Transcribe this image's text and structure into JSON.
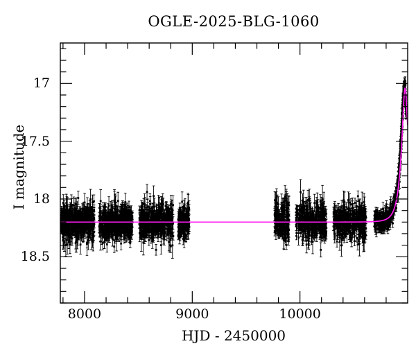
{
  "figure": {
    "title": "OGLE-2025-BLG-1060",
    "xlabel": "HJD - 2450000",
    "ylabel": "I magnitude"
  },
  "chart_data": {
    "type": "scatter",
    "title": "OGLE-2025-BLG-1060",
    "xlabel": "HJD - 2450000",
    "ylabel": "I magnitude",
    "x_range": [
      7775,
      11000
    ],
    "y_top_mag": 16.65,
    "y_bottom_mag": 18.9,
    "y_axis_inverted": true,
    "grid": false,
    "legend": false,
    "x_major_ticks": [
      8000,
      9000,
      10000
    ],
    "x_minor_step": 200,
    "y_major_ticks": [
      17,
      17.5,
      18,
      18.5
    ],
    "y_minor_step": 0.1,
    "point_color": "#000000",
    "model_color": "#ff1cef",
    "baseline_mag": 18.2,
    "model": {
      "type": "paczynski-microlensing",
      "t0": 10976,
      "tE": 65,
      "u0": 0.36,
      "peak_mag": 17.04
    },
    "seasons": [
      {
        "t_start": 7781,
        "t_end": 8090,
        "n": 480,
        "mag": 18.2,
        "sigma": 0.075
      },
      {
        "t_start": 8135,
        "t_end": 8444,
        "n": 470,
        "mag": 18.2,
        "sigma": 0.07
      },
      {
        "t_start": 8509,
        "t_end": 8824,
        "n": 430,
        "mag": 18.2,
        "sigma": 0.075
      },
      {
        "t_start": 8869,
        "t_end": 8972,
        "n": 150,
        "mag": 18.2,
        "sigma": 0.065
      },
      {
        "t_start": 9764,
        "t_end": 9899,
        "n": 190,
        "mag": 18.2,
        "sigma": 0.08
      },
      {
        "t_start": 9964,
        "t_end": 10247,
        "n": 340,
        "mag": 18.2,
        "sigma": 0.075
      },
      {
        "t_start": 10311,
        "t_end": 10614,
        "n": 340,
        "mag": 18.2,
        "sigma": 0.075
      }
    ],
    "event_rise": {
      "t_start": 10690,
      "t_end": 10988,
      "n": 330,
      "n_peak_extra": 130,
      "peak_zone_start": 10920,
      "sigma": 0.045,
      "data_lead_days": 6
    }
  }
}
